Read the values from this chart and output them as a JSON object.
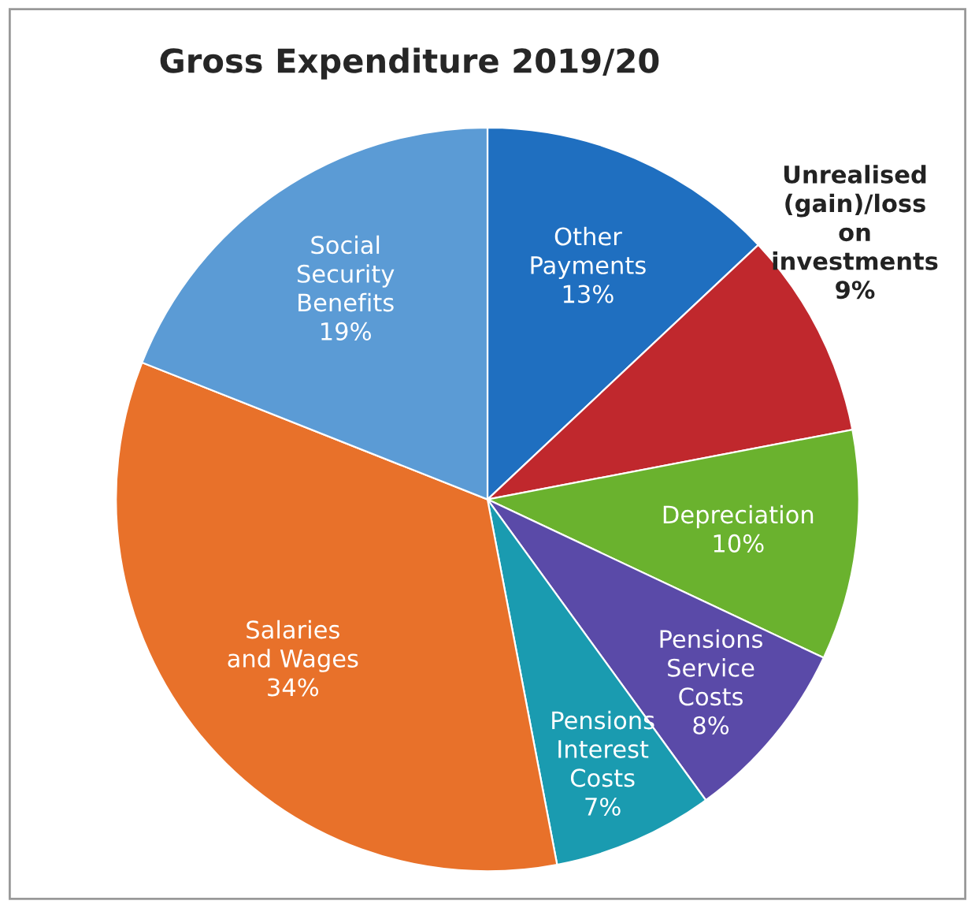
{
  "chart_data": {
    "type": "pie",
    "title": "Gross Expenditure 2019/20",
    "categories": [
      "Other Payments",
      "Unrealised (gain)/loss on investments",
      "Depreciation",
      "Pensions Service Costs",
      "Pensions Interest Costs",
      "Salaries and Wages",
      "Social Security Benefits"
    ],
    "values": [
      13,
      9,
      10,
      8,
      7,
      34,
      19
    ],
    "value_labels": [
      "13%",
      "9%",
      "10%",
      "8%",
      "7%",
      "34%",
      "19%"
    ],
    "colors": [
      "#1f6fc0",
      "#c0282d",
      "#6ab22e",
      "#5a4aa8",
      "#1a9bb0",
      "#e8712a",
      "#5b9bd5"
    ],
    "legend": false
  }
}
